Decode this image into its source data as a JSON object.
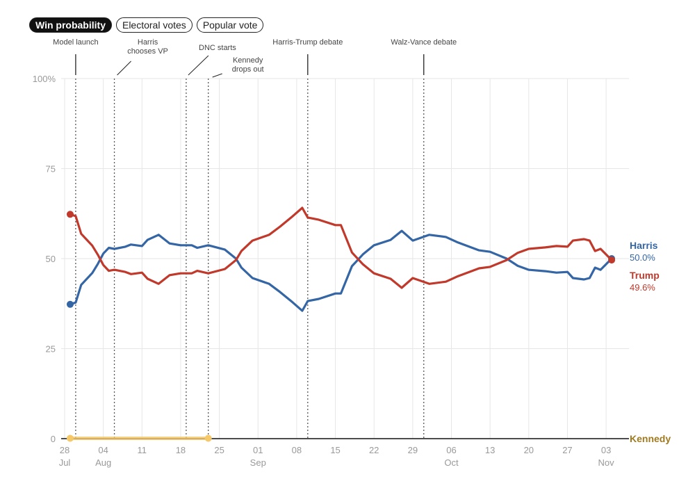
{
  "tabs": [
    {
      "label": "Win probability",
      "active": true
    },
    {
      "label": "Electoral votes",
      "active": false
    },
    {
      "label": "Popular vote",
      "active": false
    }
  ],
  "chart_data": {
    "type": "line",
    "title": "",
    "xlabel": "",
    "ylabel": "",
    "ylim": [
      0,
      100
    ],
    "y_ticks": [
      "100%",
      "75",
      "50",
      "25",
      "0"
    ],
    "y_tick_values": [
      100,
      75,
      50,
      25,
      0
    ],
    "x_ticks": [
      {
        "date": "Jul 28",
        "day": "28",
        "month": "Jul"
      },
      {
        "date": "Aug 4",
        "day": "04",
        "month": "Aug"
      },
      {
        "date": "Aug 11",
        "day": "11",
        "month": ""
      },
      {
        "date": "Aug 18",
        "day": "18",
        "month": ""
      },
      {
        "date": "Aug 25",
        "day": "25",
        "month": ""
      },
      {
        "date": "Sep 1",
        "day": "01",
        "month": "Sep"
      },
      {
        "date": "Sep 8",
        "day": "08",
        "month": ""
      },
      {
        "date": "Sep 15",
        "day": "15",
        "month": ""
      },
      {
        "date": "Sep 22",
        "day": "22",
        "month": ""
      },
      {
        "date": "Sep 29",
        "day": "29",
        "month": ""
      },
      {
        "date": "Oct 6",
        "day": "06",
        "month": "Oct"
      },
      {
        "date": "Oct 13",
        "day": "13",
        "month": ""
      },
      {
        "date": "Oct 20",
        "day": "20",
        "month": ""
      },
      {
        "date": "Oct 27",
        "day": "27",
        "month": ""
      },
      {
        "date": "Nov 3",
        "day": "03",
        "month": "Nov"
      }
    ],
    "grid": true,
    "legend": "right (end labels)",
    "events": [
      {
        "date": "Jul 30",
        "label": [
          "Model launch"
        ]
      },
      {
        "date": "Aug 6",
        "label": [
          "Harris",
          "chooses VP"
        ]
      },
      {
        "date": "Aug 19",
        "label": [
          "DNC starts"
        ]
      },
      {
        "date": "Aug 23",
        "label": [
          "Kennedy",
          "drops out"
        ]
      },
      {
        "date": "Sep 10",
        "label": [
          "Harris-Trump debate"
        ]
      },
      {
        "date": "Oct 1",
        "label": [
          "Walz-Vance debate"
        ]
      }
    ],
    "series": [
      {
        "name": "Harris",
        "color": "#3465a4",
        "end_label": "50.0%",
        "points": [
          [
            "Jul 29",
            37.3
          ],
          [
            "Jul 30",
            37.8
          ],
          [
            "Jul 31",
            42.7
          ],
          [
            "Aug 2",
            46
          ],
          [
            "Aug 3",
            48.5
          ],
          [
            "Aug 4",
            51.4
          ],
          [
            "Aug 5",
            53
          ],
          [
            "Aug 6",
            52.7
          ],
          [
            "Aug 8",
            53.3
          ],
          [
            "Aug 9",
            53.9
          ],
          [
            "Aug 11",
            53.5
          ],
          [
            "Aug 12",
            55.2
          ],
          [
            "Aug 14",
            56.6
          ],
          [
            "Aug 16",
            54.2
          ],
          [
            "Aug 18",
            53.7
          ],
          [
            "Aug 20",
            53.7
          ],
          [
            "Aug 21",
            53
          ],
          [
            "Aug 23",
            53.7
          ],
          [
            "Aug 26",
            52.5
          ],
          [
            "Aug 28",
            50
          ],
          [
            "Aug 29",
            47.5
          ],
          [
            "Aug 31",
            44.6
          ],
          [
            "Sep 3",
            43
          ],
          [
            "Sep 5",
            40.7
          ],
          [
            "Sep 7",
            38.2
          ],
          [
            "Sep 9",
            35.5
          ],
          [
            "Sep 10",
            38.2
          ],
          [
            "Sep 12",
            38.8
          ],
          [
            "Sep 15",
            40.3
          ],
          [
            "Sep 16",
            40.3
          ],
          [
            "Sep 18",
            47.9
          ],
          [
            "Sep 20",
            51.2
          ],
          [
            "Sep 22",
            53.7
          ],
          [
            "Sep 25",
            55.2
          ],
          [
            "Sep 27",
            57.7
          ],
          [
            "Sep 29",
            55
          ],
          [
            "Oct 2",
            56.6
          ],
          [
            "Oct 5",
            56
          ],
          [
            "Oct 7",
            54.6
          ],
          [
            "Oct 11",
            52.3
          ],
          [
            "Oct 13",
            51.9
          ],
          [
            "Oct 16",
            50
          ],
          [
            "Oct 18",
            48
          ],
          [
            "Oct 20",
            46.9
          ],
          [
            "Oct 23",
            46.5
          ],
          [
            "Oct 25",
            46.1
          ],
          [
            "Oct 27",
            46.3
          ],
          [
            "Oct 28",
            44.6
          ],
          [
            "Oct 30",
            44.2
          ],
          [
            "Oct 31",
            44.6
          ],
          [
            "Nov 1",
            47.5
          ],
          [
            "Nov 2",
            46.9
          ],
          [
            "Nov 4",
            50.0
          ]
        ]
      },
      {
        "name": "Trump",
        "color": "#c0392b",
        "end_label": "49.6%",
        "points": [
          [
            "Jul 29",
            62.3
          ],
          [
            "Jul 30",
            61.8
          ],
          [
            "Jul 31",
            56.9
          ],
          [
            "Aug 2",
            53.6
          ],
          [
            "Aug 3",
            51.1
          ],
          [
            "Aug 4",
            48.2
          ],
          [
            "Aug 5",
            46.6
          ],
          [
            "Aug 6",
            46.9
          ],
          [
            "Aug 8",
            46.3
          ],
          [
            "Aug 9",
            45.7
          ],
          [
            "Aug 11",
            46.1
          ],
          [
            "Aug 12",
            44.4
          ],
          [
            "Aug 14",
            43
          ],
          [
            "Aug 16",
            45.4
          ],
          [
            "Aug 18",
            45.9
          ],
          [
            "Aug 20",
            45.9
          ],
          [
            "Aug 21",
            46.6
          ],
          [
            "Aug 23",
            45.9
          ],
          [
            "Aug 26",
            47.1
          ],
          [
            "Aug 28",
            49.6
          ],
          [
            "Aug 29",
            52.1
          ],
          [
            "Aug 31",
            55
          ],
          [
            "Sep 3",
            56.6
          ],
          [
            "Sep 5",
            58.9
          ],
          [
            "Sep 7",
            61.4
          ],
          [
            "Sep 9",
            64.1
          ],
          [
            "Sep 10",
            61.4
          ],
          [
            "Sep 12",
            60.8
          ],
          [
            "Sep 15",
            59.3
          ],
          [
            "Sep 16",
            59.3
          ],
          [
            "Sep 18",
            51.7
          ],
          [
            "Sep 20",
            48.4
          ],
          [
            "Sep 22",
            45.9
          ],
          [
            "Sep 25",
            44.4
          ],
          [
            "Sep 27",
            41.9
          ],
          [
            "Sep 29",
            44.6
          ],
          [
            "Oct 2",
            43
          ],
          [
            "Oct 5",
            43.6
          ],
          [
            "Oct 7",
            45
          ],
          [
            "Oct 11",
            47.3
          ],
          [
            "Oct 13",
            47.7
          ],
          [
            "Oct 16",
            49.6
          ],
          [
            "Oct 18",
            51.6
          ],
          [
            "Oct 20",
            52.7
          ],
          [
            "Oct 23",
            53.1
          ],
          [
            "Oct 25",
            53.5
          ],
          [
            "Oct 27",
            53.3
          ],
          [
            "Oct 28",
            55
          ],
          [
            "Oct 30",
            55.4
          ],
          [
            "Oct 31",
            55
          ],
          [
            "Nov 1",
            52.1
          ],
          [
            "Nov 2",
            52.7
          ],
          [
            "Nov 4",
            49.6
          ]
        ]
      },
      {
        "name": "Kennedy",
        "color": "#a07a1f",
        "line_color": "#f5c86a",
        "end_label": "",
        "points": [
          [
            "Jul 29",
            0.1
          ],
          [
            "Aug 23",
            0.1
          ]
        ],
        "end_points": [
          [
            "Aug 23",
            0
          ],
          [
            "Nov 4",
            0
          ]
        ]
      }
    ]
  }
}
